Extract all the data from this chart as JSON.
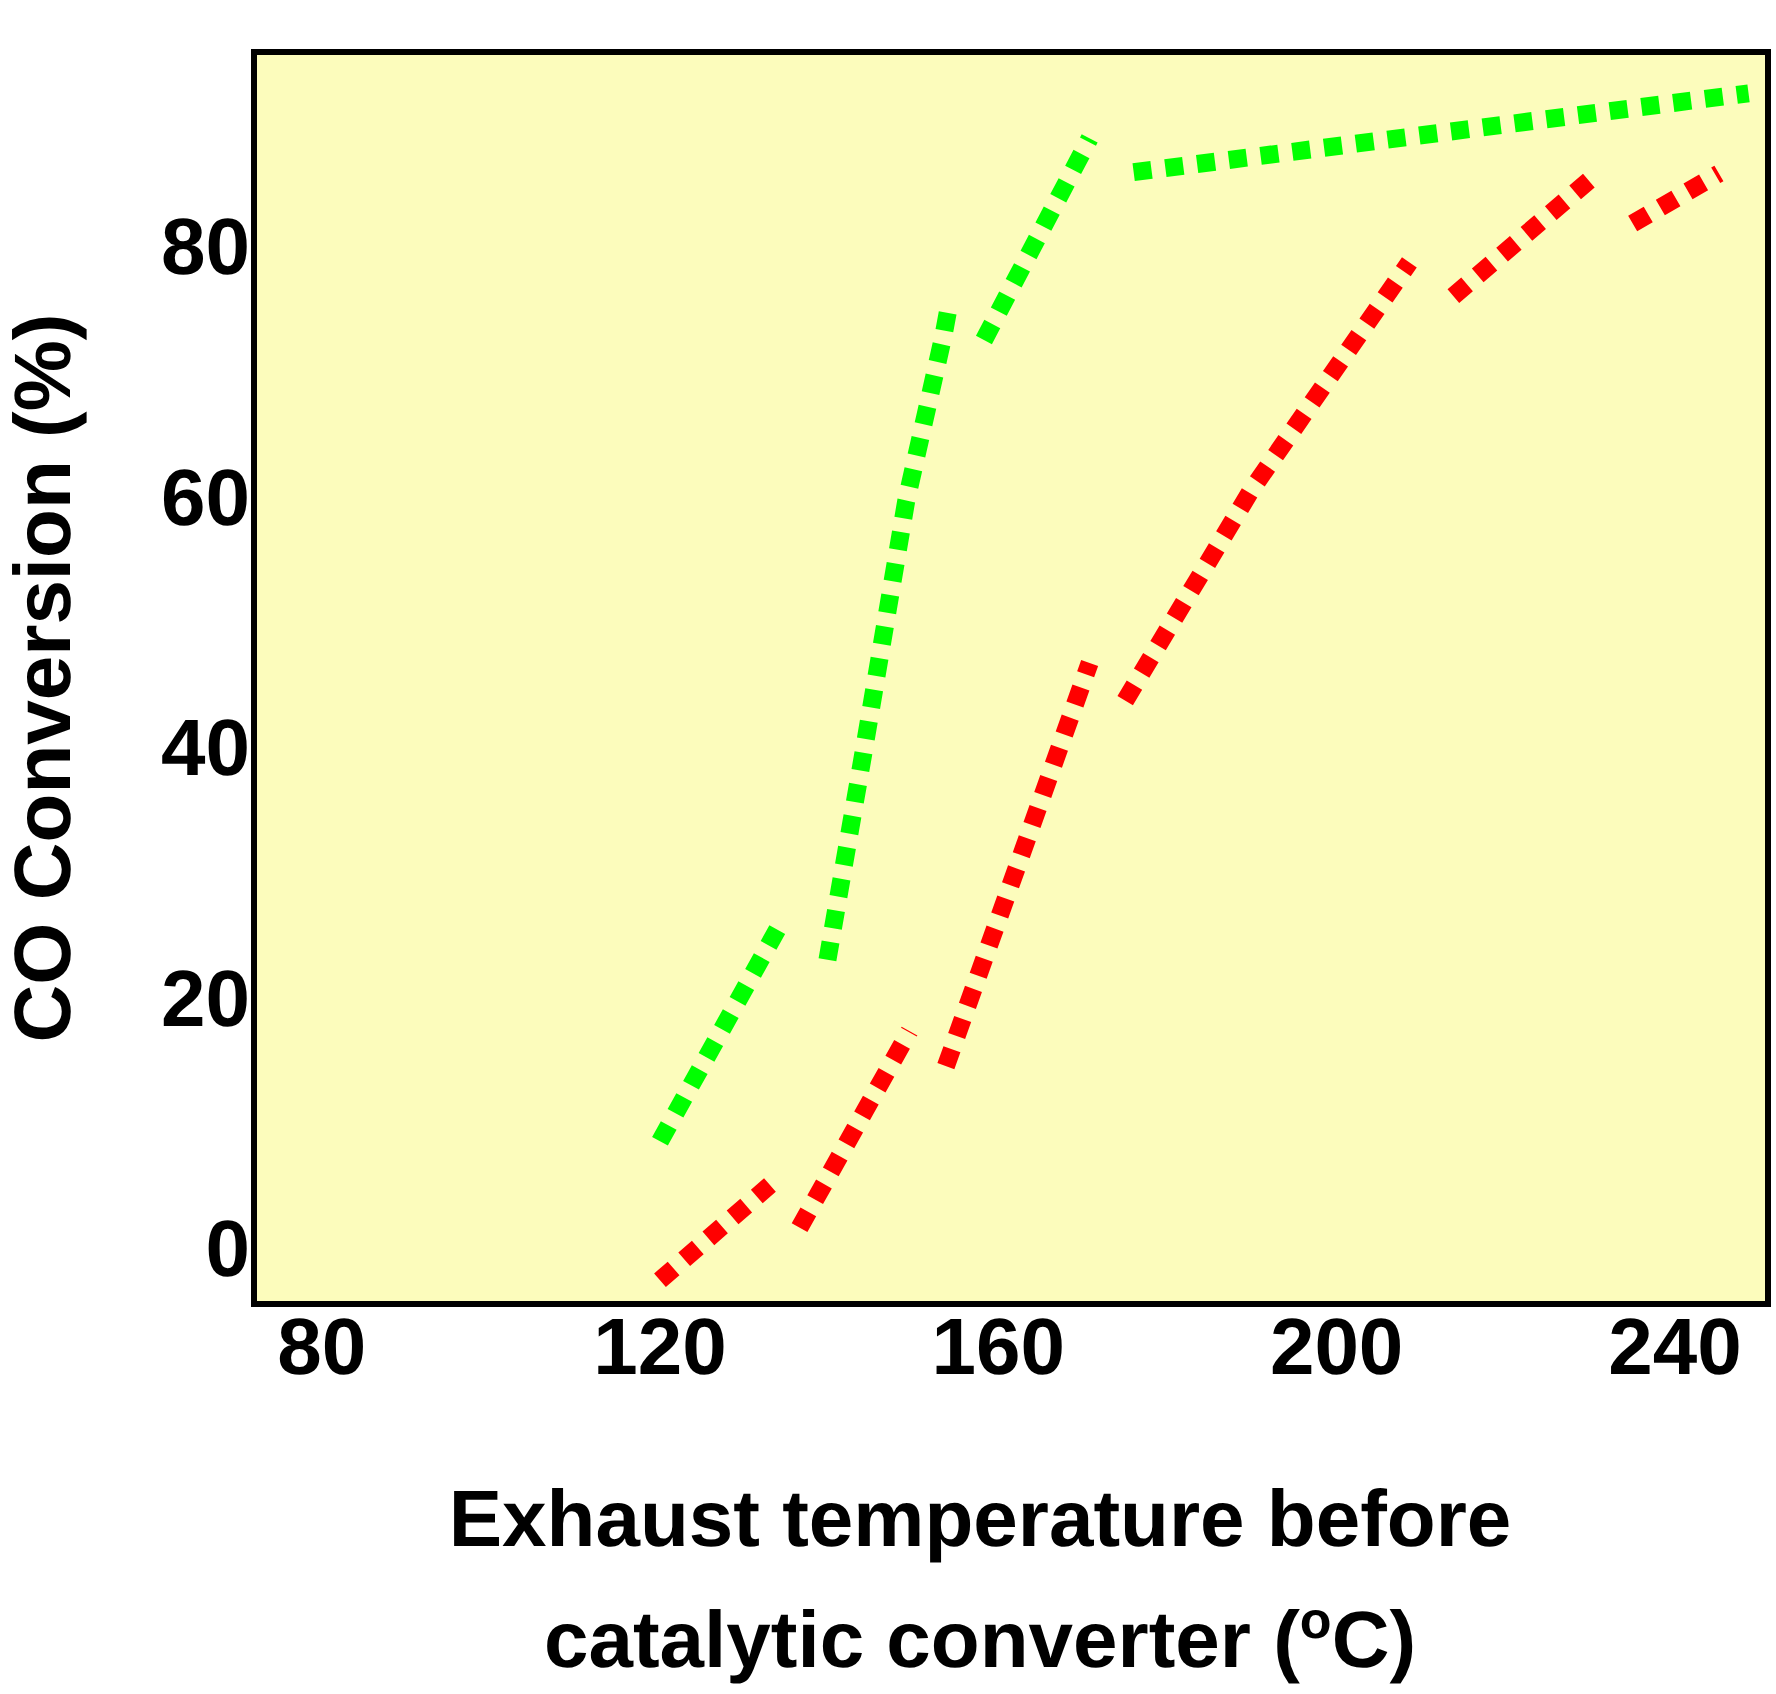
{
  "chart_data": {
    "type": "line",
    "xlabel": "Exhaust temperature before catalytic converter ($^{o}$C)",
    "ylabel": "CO Conversion (%)",
    "xlim": [
      72,
      251
    ],
    "xticks": [
      80,
      120,
      160,
      200,
      240
    ],
    "ylim": [
      -4,
      96
    ],
    "yticks": [
      0,
      20,
      40,
      60,
      80
    ],
    "grid": false,
    "legend": false,
    "marker": "none",
    "line_style": "dotted",
    "series": [
      {
        "color": "#00ff00",
        "x": [
          120,
          134.6
        ],
        "values": [
          9,
          26.8
        ]
      },
      {
        "color": "#00ff00",
        "x": [
          139.8,
          144.1,
          149.1,
          153.5,
          154.3
        ],
        "values": [
          23.5,
          40.2,
          60.1,
          73.3,
          76.2
        ]
      },
      {
        "color": "#00ff00",
        "x": [
          158.3,
          170.8
        ],
        "values": [
          73,
          89.1
        ]
      },
      {
        "color": "#00ff00",
        "x": [
          176,
          248.7
        ],
        "values": [
          86.4,
          92.7
        ]
      },
      {
        "color": "#ff0000",
        "x": [
          120,
          133
        ],
        "values": [
          -2.1,
          5.5
        ]
      },
      {
        "color": "#ff0000",
        "x": [
          136.5,
          149.5
        ],
        "values": [
          2.1,
          17.8
        ]
      },
      {
        "color": "#ff0000",
        "x": [
          153.8,
          162.9,
          170.8
        ],
        "values": [
          15,
          32.2,
          47.2
        ]
      },
      {
        "color": "#ff0000",
        "x": [
          175,
          189.9,
          208.6
        ],
        "values": [
          44.2,
          61,
          79.2
        ]
      },
      {
        "color": "#ff0000",
        "x": [
          213.8,
          230.3
        ],
        "values": [
          76.5,
          86
        ]
      },
      {
        "color": "#ff0000",
        "x": [
          235,
          245.2
        ],
        "values": [
          82.3,
          86.3
        ]
      }
    ]
  }
}
